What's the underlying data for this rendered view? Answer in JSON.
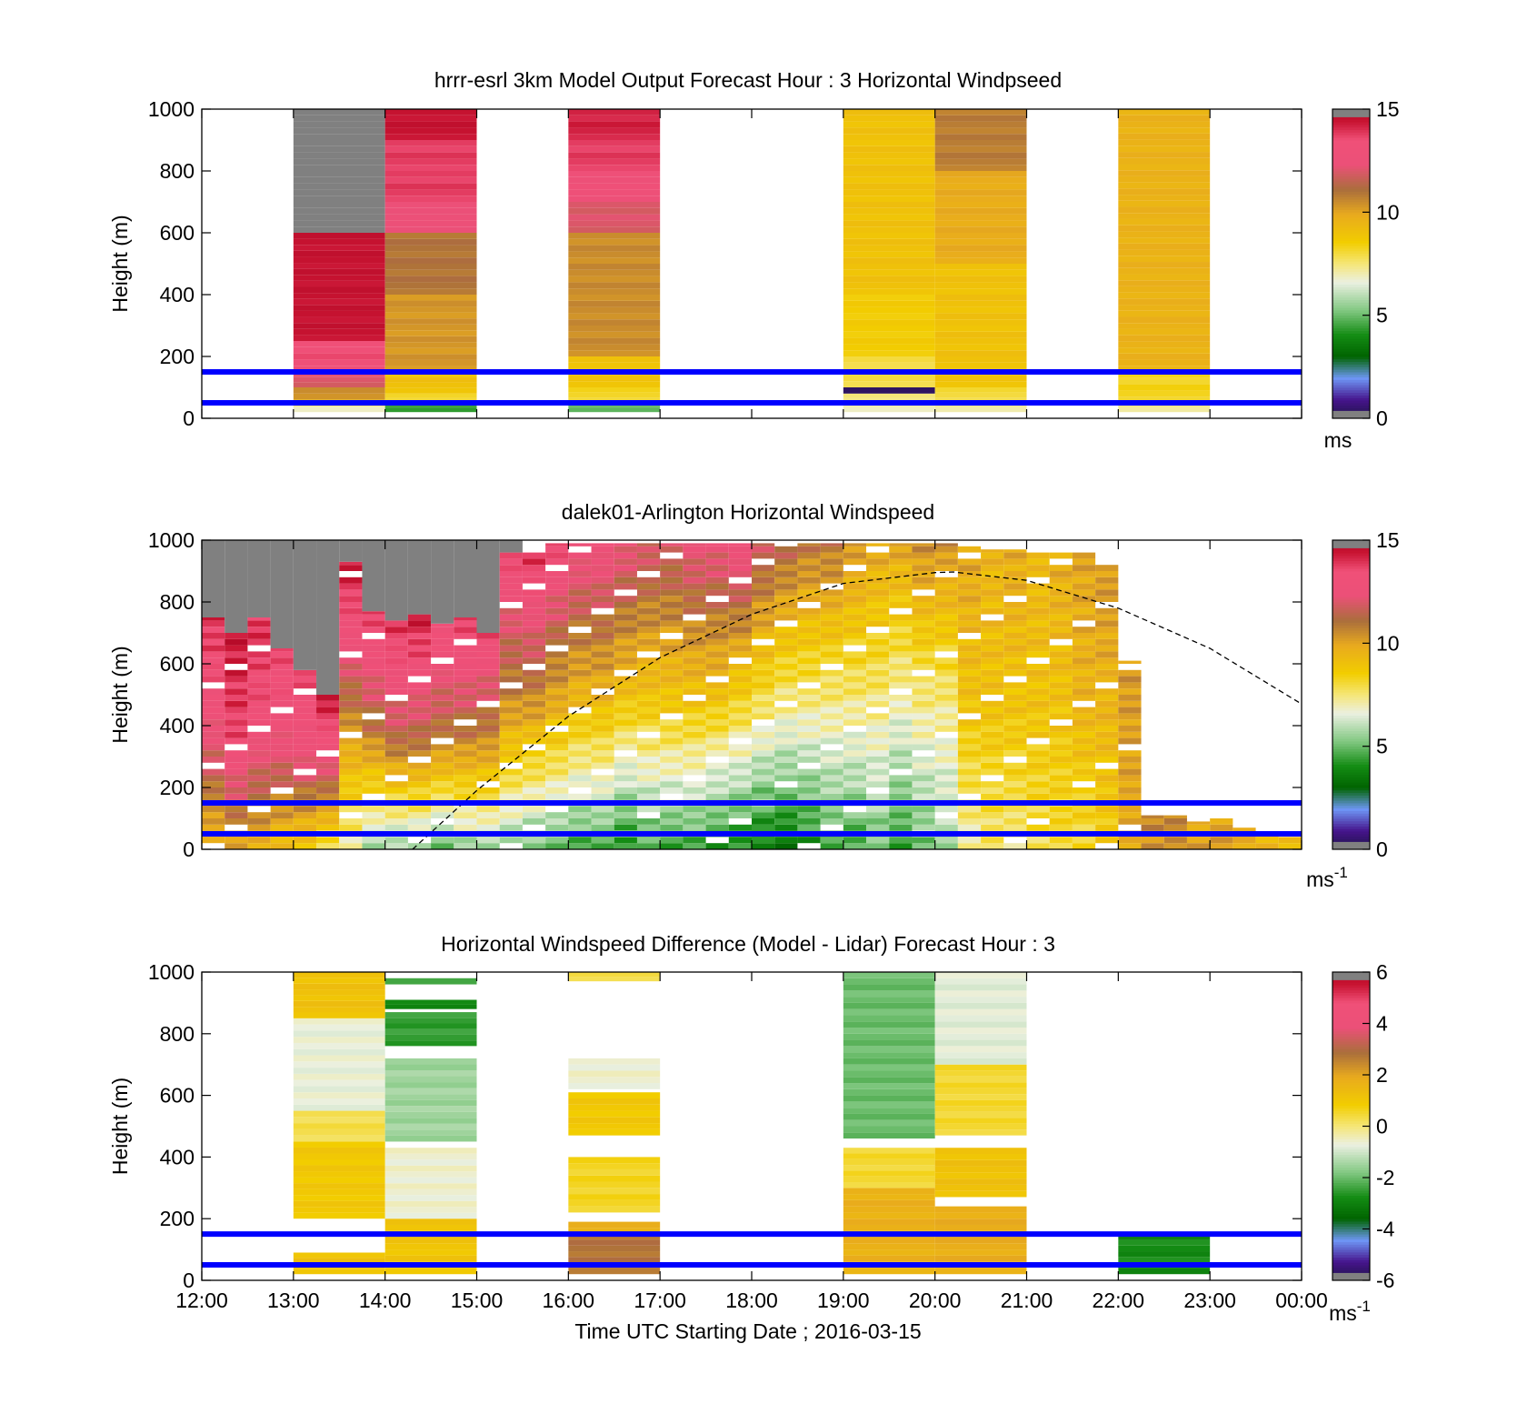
{
  "figure": {
    "time_label": "Time UTC  Starting Date ; 2016-03-15",
    "height_label": "Height (m)"
  },
  "chart_data": [
    {
      "type": "heatmap",
      "title": "hrrr-esrl 3km Model Output   Forecast Hour : 3 Horizontal Windpseed",
      "xlabel": "",
      "ylabel": "Height (m)",
      "x_ticks": [
        "",
        "",
        "",
        "",
        "",
        "",
        "",
        "",
        "",
        "",
        "",
        "",
        ""
      ],
      "y_ticks": [
        "0",
        "200",
        "400",
        "600",
        "800",
        "1000"
      ],
      "ylim": [
        0,
        1000
      ],
      "xlim_hours": [
        12,
        24
      ],
      "colorbar": {
        "unit": "ms",
        "unit_sup": "",
        "ticks": [
          "0",
          "5",
          "10",
          "15"
        ],
        "range": [
          0,
          15
        ]
      },
      "reference_lines_m": [
        50,
        150
      ],
      "columns": [
        {
          "hour_start": 13,
          "hour_end": 14,
          "cells": [
            {
              "from": 20,
              "to": 40,
              "value": 7.0
            },
            {
              "from": 40,
              "to": 60,
              "value": 8.5
            },
            {
              "from": 60,
              "to": 100,
              "value": 10.5
            },
            {
              "from": 100,
              "to": 150,
              "value": 12.0
            },
            {
              "from": 150,
              "to": 250,
              "value": 13.5
            },
            {
              "from": 250,
              "to": 600,
              "value": 14.5
            },
            {
              "from": 600,
              "to": 1000,
              "value": 15.5
            }
          ]
        },
        {
          "hour_start": 14,
          "hour_end": 15,
          "cells": [
            {
              "from": 20,
              "to": 50,
              "value": 4.5
            },
            {
              "from": 50,
              "to": 80,
              "value": 8.2
            },
            {
              "from": 80,
              "to": 150,
              "value": 9.0
            },
            {
              "from": 150,
              "to": 400,
              "value": 10.3
            },
            {
              "from": 400,
              "to": 600,
              "value": 11.0
            },
            {
              "from": 600,
              "to": 700,
              "value": 12.5
            },
            {
              "from": 700,
              "to": 800,
              "value": 13.8
            },
            {
              "from": 800,
              "to": 900,
              "value": 13.8
            },
            {
              "from": 900,
              "to": 1000,
              "value": 14.5
            }
          ]
        },
        {
          "hour_start": 16,
          "hour_end": 17,
          "cells": [
            {
              "from": 20,
              "to": 50,
              "value": 5.0
            },
            {
              "from": 50,
              "to": 100,
              "value": 8.2
            },
            {
              "from": 100,
              "to": 200,
              "value": 9.0
            },
            {
              "from": 200,
              "to": 600,
              "value": 10.5
            },
            {
              "from": 600,
              "to": 700,
              "value": 12.0
            },
            {
              "from": 700,
              "to": 800,
              "value": 13.0
            },
            {
              "from": 800,
              "to": 900,
              "value": 13.8
            },
            {
              "from": 900,
              "to": 1000,
              "value": 14.2
            }
          ]
        },
        {
          "hour_start": 19,
          "hour_end": 20,
          "cells": [
            {
              "from": 20,
              "to": 50,
              "value": 7.0
            },
            {
              "from": 50,
              "to": 80,
              "value": 7.5
            },
            {
              "from": 80,
              "to": 100,
              "value": 0.5
            },
            {
              "from": 100,
              "to": 200,
              "value": 8.0
            },
            {
              "from": 200,
              "to": 400,
              "value": 8.6
            },
            {
              "from": 400,
              "to": 1000,
              "value": 9.0
            }
          ]
        },
        {
          "hour_start": 20,
          "hour_end": 21,
          "cells": [
            {
              "from": 20,
              "to": 50,
              "value": 7.2
            },
            {
              "from": 50,
              "to": 100,
              "value": 8.0
            },
            {
              "from": 100,
              "to": 500,
              "value": 9.0
            },
            {
              "from": 500,
              "to": 800,
              "value": 9.8
            },
            {
              "from": 800,
              "to": 1000,
              "value": 10.8
            }
          ]
        },
        {
          "hour_start": 22,
          "hour_end": 23,
          "cells": [
            {
              "from": 20,
              "to": 50,
              "value": 7.3
            },
            {
              "from": 50,
              "to": 150,
              "value": 8.3
            },
            {
              "from": 150,
              "to": 1000,
              "value": 9.6
            }
          ]
        }
      ]
    },
    {
      "type": "heatmap",
      "title": "dalek01-Arlington  Horizontal Windspeed",
      "xlabel": "",
      "ylabel": "Height (m)",
      "x_ticks": [
        "",
        "",
        "",
        "",
        "",
        "",
        "",
        "",
        "",
        "",
        "",
        "",
        ""
      ],
      "y_ticks": [
        "0",
        "200",
        "400",
        "600",
        "800",
        "1000"
      ],
      "ylim": [
        0,
        1000
      ],
      "xlim_hours": [
        12,
        24
      ],
      "colorbar": {
        "unit": "ms",
        "unit_sup": "-1",
        "ticks": [
          "0",
          "5",
          "10",
          "15"
        ],
        "range": [
          0,
          15
        ]
      },
      "reference_lines_m": [
        50,
        150
      ],
      "dashed_curve": {
        "hours": [
          14.3,
          15,
          16,
          17,
          18,
          19,
          20,
          20.2,
          21,
          22,
          23,
          24
        ],
        "heights": [
          0,
          190,
          430,
          620,
          760,
          860,
          895,
          897,
          870,
          780,
          650,
          470
        ]
      },
      "profiles": [
        {
          "hour": 12.0,
          "top": 750,
          "low": 9.5,
          "mid": 12.5,
          "high": 14.0
        },
        {
          "hour": 12.25,
          "top": 700,
          "low": 10.0,
          "mid": 13.5,
          "high": 14.5
        },
        {
          "hour": 12.5,
          "top": 750,
          "low": 9.5,
          "mid": 13.0,
          "high": 14.0
        },
        {
          "hour": 12.75,
          "top": 650,
          "low": 9.0,
          "mid": 12.5,
          "high": 13.5
        },
        {
          "hour": 13.0,
          "top": 580,
          "low": 8.5,
          "mid": 12.5,
          "high": 13.5
        },
        {
          "hour": 13.25,
          "top": 500,
          "low": 8.0,
          "mid": 12.0,
          "high": 14.5
        },
        {
          "hour": 13.5,
          "top": 930,
          "low": 7.0,
          "mid": 11.0,
          "high": 14.5
        },
        {
          "hour": 13.75,
          "top": 770,
          "low": 5.5,
          "mid": 11.0,
          "high": 14.0
        },
        {
          "hour": 14.0,
          "top": 740,
          "low": 5.5,
          "mid": 11.5,
          "high": 14.0
        },
        {
          "hour": 14.25,
          "top": 760,
          "low": 5.5,
          "mid": 11.5,
          "high": 14.5
        },
        {
          "hour": 14.5,
          "top": 730,
          "low": 5.0,
          "mid": 11.0,
          "high": 13.5
        },
        {
          "hour": 14.75,
          "top": 750,
          "low": 5.5,
          "mid": 11.0,
          "high": 14.0
        },
        {
          "hour": 15.0,
          "top": 700,
          "low": 5.5,
          "mid": 10.5,
          "high": 13.5
        },
        {
          "hour": 15.25,
          "top": 960,
          "low": 5.5,
          "mid": 10.5,
          "high": 13.5
        },
        {
          "hour": 15.5,
          "top": 960,
          "low": 5.0,
          "mid": 10.5,
          "high": 14.0
        },
        {
          "hour": 15.75,
          "top": 990,
          "low": 5.0,
          "mid": 10.0,
          "high": 13.5
        },
        {
          "hour": 16.0,
          "top": 990,
          "low": 4.5,
          "mid": 9.5,
          "high": 13.0
        },
        {
          "hour": 16.25,
          "top": 990,
          "low": 4.5,
          "mid": 9.5,
          "high": 13.0
        },
        {
          "hour": 16.5,
          "top": 990,
          "low": 4.0,
          "mid": 9.0,
          "high": 12.5
        },
        {
          "hour": 16.75,
          "top": 990,
          "low": 4.5,
          "mid": 9.0,
          "high": 12.0
        },
        {
          "hour": 17.0,
          "top": 990,
          "low": 4.5,
          "mid": 9.0,
          "high": 12.0
        },
        {
          "hour": 17.25,
          "top": 990,
          "low": 4.5,
          "mid": 9.0,
          "high": 12.5
        },
        {
          "hour": 17.5,
          "top": 990,
          "low": 4.0,
          "mid": 9.0,
          "high": 12.5
        },
        {
          "hour": 17.75,
          "top": 990,
          "low": 4.0,
          "mid": 8.5,
          "high": 13.0
        },
        {
          "hour": 18.0,
          "top": 990,
          "low": 3.5,
          "mid": 8.0,
          "high": 12.0
        },
        {
          "hour": 18.25,
          "top": 990,
          "low": 3.5,
          "mid": 7.5,
          "high": 11.5
        },
        {
          "hour": 18.5,
          "top": 990,
          "low": 4.0,
          "mid": 7.5,
          "high": 11.0
        },
        {
          "hour": 18.75,
          "top": 990,
          "low": 4.5,
          "mid": 7.5,
          "high": 11.0
        },
        {
          "hour": 19.0,
          "top": 990,
          "low": 4.5,
          "mid": 7.5,
          "high": 10.5
        },
        {
          "hour": 19.25,
          "top": 990,
          "low": 5.0,
          "mid": 7.5,
          "high": 10.0
        },
        {
          "hour": 19.5,
          "top": 990,
          "low": 4.5,
          "mid": 7.0,
          "high": 10.0
        },
        {
          "hour": 19.75,
          "top": 990,
          "low": 5.0,
          "mid": 7.5,
          "high": 10.5
        },
        {
          "hour": 20.0,
          "top": 990,
          "low": 5.5,
          "mid": 7.5,
          "high": 10.5
        },
        {
          "hour": 20.25,
          "top": 980,
          "low": 7.0,
          "mid": 9.0,
          "high": 10.0
        },
        {
          "hour": 20.5,
          "top": 970,
          "low": 7.5,
          "mid": 9.0,
          "high": 9.5
        },
        {
          "hour": 20.75,
          "top": 970,
          "low": 7.5,
          "mid": 9.0,
          "high": 9.8
        },
        {
          "hour": 21.0,
          "top": 960,
          "low": 7.8,
          "mid": 9.0,
          "high": 9.5
        },
        {
          "hour": 21.25,
          "top": 960,
          "low": 8.0,
          "mid": 9.0,
          "high": 9.8
        },
        {
          "hour": 21.5,
          "top": 960,
          "low": 8.0,
          "mid": 9.5,
          "high": 10.0
        },
        {
          "hour": 21.75,
          "top": 920,
          "low": 8.5,
          "mid": 9.5,
          "high": 10.3
        },
        {
          "hour": 22.0,
          "top": 610,
          "low": 10.0,
          "mid": 10.0,
          "high": 10.3
        },
        {
          "hour": 22.25,
          "top": 110,
          "low": 10.5,
          "mid": 10.5,
          "high": 10.5
        },
        {
          "hour": 22.5,
          "top": 110,
          "low": 10.5,
          "mid": 10.5,
          "high": 10.5
        },
        {
          "hour": 22.75,
          "top": 90,
          "low": 10.0,
          "mid": 10.0,
          "high": 10.0
        },
        {
          "hour": 23.0,
          "top": 100,
          "low": 10.0,
          "mid": 10.0,
          "high": 10.0
        },
        {
          "hour": 23.25,
          "top": 70,
          "low": 10.0,
          "mid": 10.0,
          "high": 10.0
        },
        {
          "hour": 23.5,
          "top": 50,
          "low": 9.5,
          "mid": 9.5,
          "high": 9.5
        },
        {
          "hour": 23.75,
          "top": 40,
          "low": 9.2,
          "mid": 9.2,
          "high": 9.2
        }
      ]
    },
    {
      "type": "heatmap",
      "title": "Horizontal Windspeed Difference (Model - Lidar) Forecast Hour : 3",
      "xlabel": "Time UTC  Starting Date ; 2016-03-15",
      "ylabel": "Height (m)",
      "x_ticks": [
        "12:00",
        "13:00",
        "14:00",
        "15:00",
        "16:00",
        "17:00",
        "18:00",
        "19:00",
        "20:00",
        "21:00",
        "22:00",
        "23:00",
        "00:00"
      ],
      "y_ticks": [
        "0",
        "200",
        "400",
        "600",
        "800",
        "1000"
      ],
      "ylim": [
        0,
        1000
      ],
      "xlim_hours": [
        12,
        24
      ],
      "colorbar": {
        "unit": "ms",
        "unit_sup": "-1",
        "ticks": [
          "-6",
          "-4",
          "-2",
          "0",
          "2",
          "4",
          "6"
        ],
        "range": [
          -6,
          6
        ]
      },
      "reference_lines_m": [
        50,
        150
      ],
      "columns": [
        {
          "hour_start": 13,
          "hour_end": 14,
          "cells": [
            {
              "from": 20,
              "to": 90,
              "value": 1.2
            },
            {
              "from": 200,
              "to": 450,
              "value": 1.0
            },
            {
              "from": 450,
              "to": 550,
              "value": 0.3
            },
            {
              "from": 550,
              "to": 850,
              "value": -0.7
            },
            {
              "from": 850,
              "to": 1000,
              "value": 1.2
            }
          ]
        },
        {
          "hour_start": 14,
          "hour_end": 15,
          "cells": [
            {
              "from": 20,
              "to": 200,
              "value": 1.1
            },
            {
              "from": 200,
              "to": 430,
              "value": -0.6
            },
            {
              "from": 450,
              "to": 720,
              "value": -1.5
            },
            {
              "from": 760,
              "to": 870,
              "value": -2.5
            },
            {
              "from": 880,
              "to": 910,
              "value": -2.8
            },
            {
              "from": 960,
              "to": 980,
              "value": -2.2
            }
          ]
        },
        {
          "hour_start": 16,
          "hour_end": 17,
          "cells": [
            {
              "from": 20,
              "to": 150,
              "value": 2.8
            },
            {
              "from": 150,
              "to": 190,
              "value": 1.8
            },
            {
              "from": 220,
              "to": 400,
              "value": 0.6
            },
            {
              "from": 470,
              "to": 610,
              "value": 1.0
            },
            {
              "from": 620,
              "to": 720,
              "value": -0.6
            },
            {
              "from": 970,
              "to": 1000,
              "value": 0.4
            }
          ]
        },
        {
          "hour_start": 19,
          "hour_end": 20,
          "cells": [
            {
              "from": 20,
              "to": 300,
              "value": 1.7
            },
            {
              "from": 300,
              "to": 430,
              "value": 0.5
            },
            {
              "from": 460,
              "to": 1000,
              "value": -2.0
            }
          ]
        },
        {
          "hour_start": 20,
          "hour_end": 21,
          "cells": [
            {
              "from": 20,
              "to": 240,
              "value": 1.8
            },
            {
              "from": 270,
              "to": 430,
              "value": 1.2
            },
            {
              "from": 470,
              "to": 700,
              "value": 0.5
            },
            {
              "from": 700,
              "to": 1000,
              "value": -0.8
            }
          ]
        },
        {
          "hour_start": 22,
          "hour_end": 23,
          "cells": [
            {
              "from": 20,
              "to": 150,
              "value": -2.8
            }
          ]
        }
      ]
    }
  ]
}
